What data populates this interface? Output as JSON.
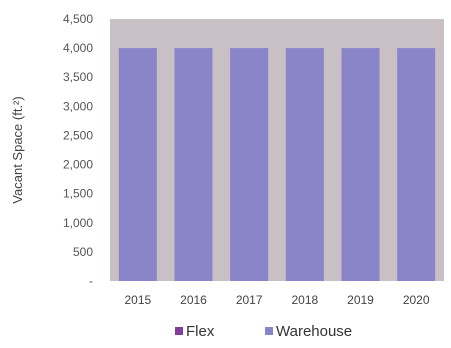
{
  "chart_data": {
    "type": "bar",
    "title": "",
    "xlabel": "",
    "ylabel": "Vacant Space (ft.²)",
    "categories": [
      "2015",
      "2016",
      "2017",
      "2018",
      "2019",
      "2020"
    ],
    "series": [
      {
        "name": "Flex",
        "color": "#7f3f98",
        "values": [
          0,
          0,
          0,
          0,
          0,
          0
        ]
      },
      {
        "name": "Warehouse",
        "color": "#8a84c8",
        "values": [
          4000,
          4000,
          4000,
          4000,
          4000,
          4000
        ]
      }
    ],
    "ylim": [
      0,
      4500
    ],
    "yticks": [
      0,
      500,
      1000,
      1500,
      2000,
      2500,
      3000,
      3500,
      4000,
      4500
    ],
    "ytick_labels": [
      "-",
      "500",
      "1,000",
      "1,500",
      "2,000",
      "2,500",
      "3,000",
      "3,500",
      "4,000",
      "4,500"
    ],
    "plot_background": "#c8c0c4",
    "grid": false,
    "stacked": true,
    "legend_position": "bottom"
  }
}
